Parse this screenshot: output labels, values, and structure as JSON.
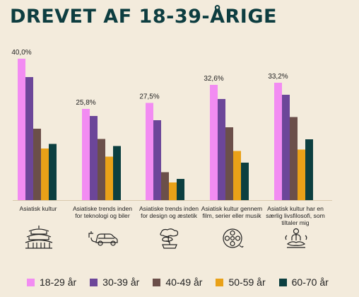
{
  "title": "DREVET AF 18-39-ÅRIGE",
  "colors": {
    "background": "#f3ebdc",
    "title": "#0d3d40",
    "baseline": "#d9c9ad"
  },
  "chart_data": {
    "type": "bar",
    "title": "DREVET AF 18-39-ÅRIGE",
    "xlabel": "",
    "ylabel": "",
    "ylim": [
      0,
      41
    ],
    "grid": false,
    "legend_position": "bottom",
    "categories": [
      "Asiatisk kultur",
      "Asiatiske trends inden for teknologi og biler",
      "Asiatiske trends inden for design og æstetik",
      "Asiatisk kultur gennem film, serier eller musik",
      "Asiatisk kultur har en særlig livsfilosofi, som tiltaler mig"
    ],
    "category_icons": [
      "pagoda-icon",
      "electric-car-icon",
      "bonsai-icon",
      "film-reel-icon",
      "meditation-icon"
    ],
    "data_labels": [
      "40,0%",
      "25,8%",
      "27,5%",
      "32,6%",
      "33,2%"
    ],
    "series": [
      {
        "name": "18-29 år",
        "color": "#f28cf2",
        "values": [
          40.0,
          25.8,
          27.5,
          32.6,
          33.2
        ]
      },
      {
        "name": "30-39 år",
        "color": "#6c4699",
        "values": [
          34.8,
          23.8,
          22.6,
          28.6,
          29.8
        ]
      },
      {
        "name": "40-49 år",
        "color": "#6b4f4a",
        "values": [
          20.2,
          17.3,
          7.9,
          20.6,
          23.5
        ]
      },
      {
        "name": "50-59 år",
        "color": "#e9a118",
        "values": [
          14.6,
          12.3,
          5.0,
          13.9,
          14.3
        ]
      },
      {
        "name": "60-70 år",
        "color": "#0c3f40",
        "values": [
          15.9,
          15.3,
          6.0,
          10.6,
          17.2
        ]
      }
    ]
  }
}
